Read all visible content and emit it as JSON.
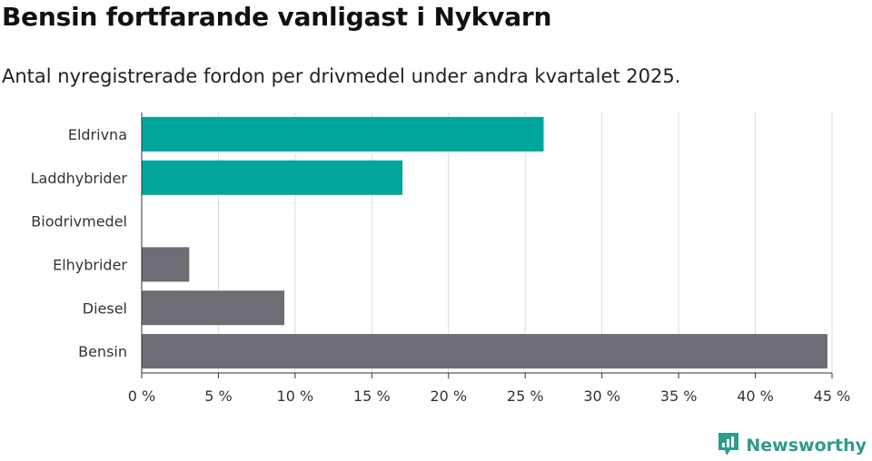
{
  "title": "Bensin fortfarande vanligast i Nykvarn",
  "subtitle": "Antal nyregistrerade fordon per drivmedel under andra kvartalet 2025.",
  "brand": {
    "name": "Newsworthy",
    "icon": "newsworthy-logo-icon"
  },
  "colors": {
    "highlight": "#00a59b",
    "default": "#6e6c74",
    "grid": "#dddddd",
    "axis": "#333333",
    "brand": "#2f9b8c"
  },
  "chart_data": {
    "type": "bar",
    "orientation": "horizontal",
    "categories": [
      "Eldrivna",
      "Laddhybrider",
      "Biodrivmedel",
      "Elhybrider",
      "Diesel",
      "Bensin"
    ],
    "values": [
      26.2,
      17.0,
      0,
      3.1,
      9.3,
      44.7
    ],
    "highlighted": [
      true,
      true,
      true,
      false,
      false,
      false
    ],
    "xlim": [
      0,
      45
    ],
    "xticks": [
      0,
      5,
      10,
      15,
      20,
      25,
      30,
      35,
      40,
      45
    ],
    "tick_labels": [
      "0 %",
      "5 %",
      "10 %",
      "15 %",
      "20 %",
      "25 %",
      "30 %",
      "35 %",
      "40 %",
      "45 %"
    ],
    "grid": true
  }
}
